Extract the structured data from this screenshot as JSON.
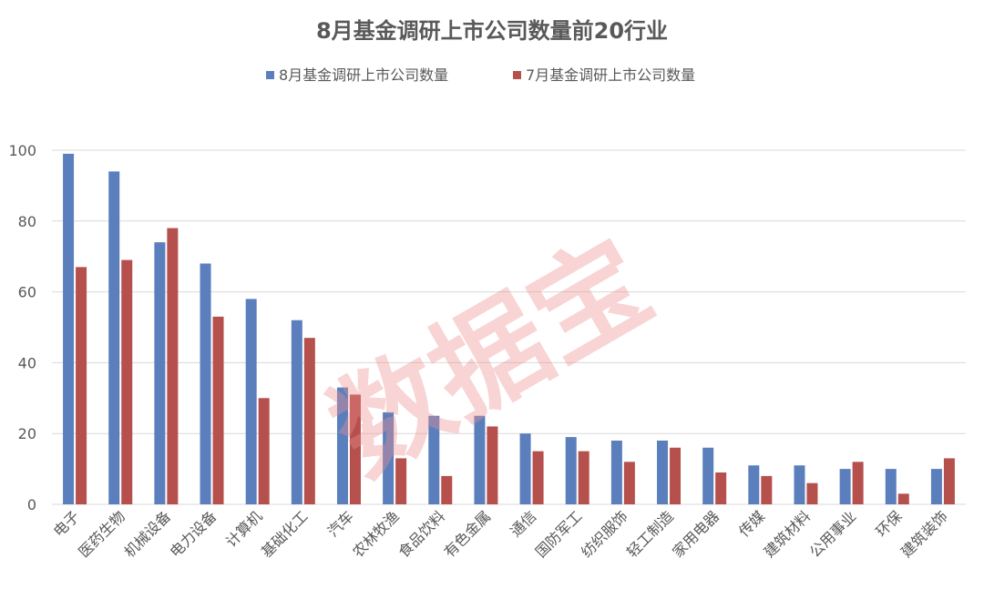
{
  "chart_data": {
    "type": "bar",
    "title": "8月基金调研上市公司数量前20行业",
    "xlabel": "",
    "ylabel": "",
    "ylim": [
      0,
      100
    ],
    "yticks": [
      0,
      20,
      40,
      60,
      80,
      100
    ],
    "grid": true,
    "legend_position": "top-center",
    "categories": [
      "电子",
      "医药生物",
      "机械设备",
      "电力设备",
      "计算机",
      "基础化工",
      "汽车",
      "农林牧渔",
      "食品饮料",
      "有色金属",
      "通信",
      "国防军工",
      "纺织服饰",
      "轻工制造",
      "家用电器",
      "传媒",
      "建筑材料",
      "公用事业",
      "环保",
      "建筑装饰"
    ],
    "series": [
      {
        "name": "8月基金调研上市公司数量",
        "color": "#5b7fbd",
        "values": [
          99,
          94,
          74,
          68,
          58,
          52,
          33,
          26,
          25,
          25,
          20,
          19,
          18,
          18,
          16,
          11,
          11,
          10,
          10,
          10
        ]
      },
      {
        "name": "7月基金调研上市公司数量",
        "color": "#b5504d",
        "values": [
          67,
          69,
          78,
          53,
          30,
          47,
          31,
          13,
          8,
          22,
          15,
          15,
          12,
          16,
          9,
          8,
          6,
          12,
          3,
          13
        ]
      }
    ],
    "watermark": "数据宝"
  }
}
